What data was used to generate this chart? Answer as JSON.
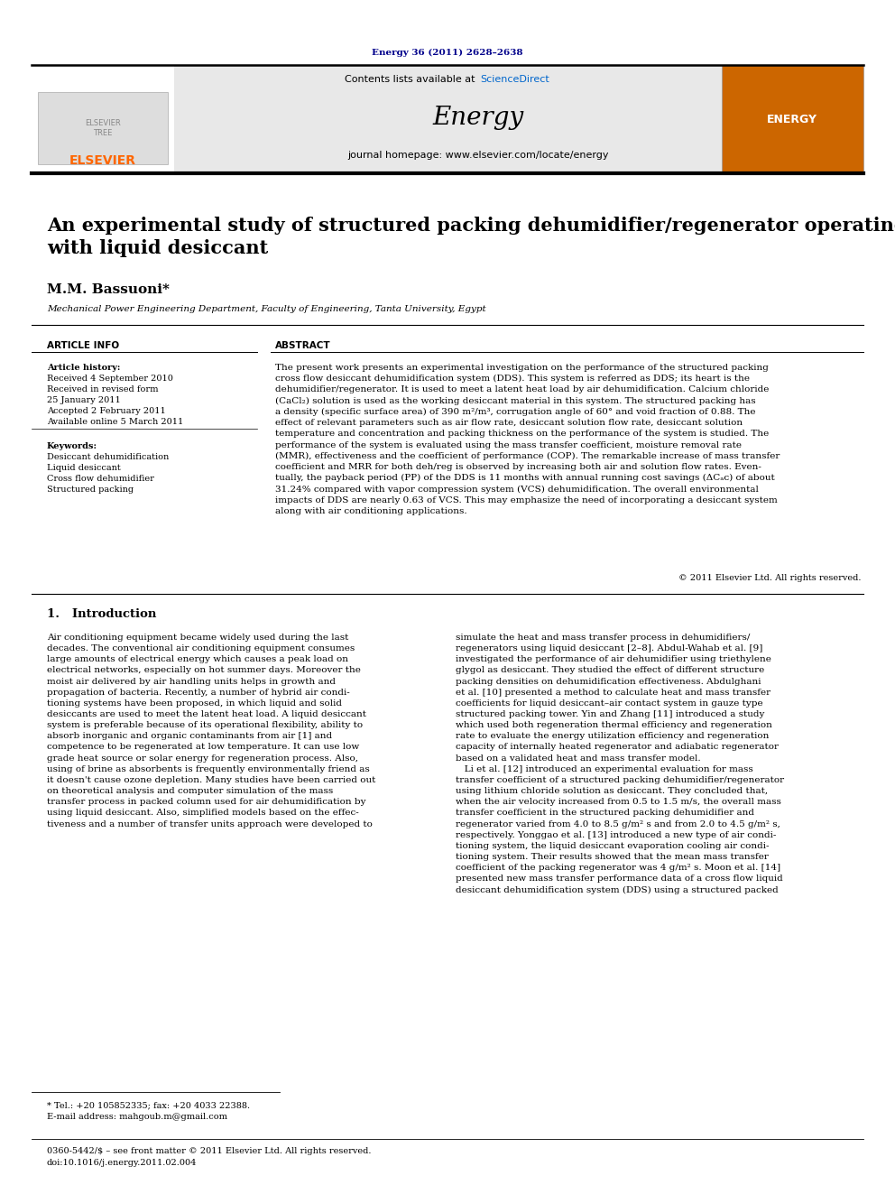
{
  "page_bg": "#ffffff",
  "header_doi": "Energy 36 (2011) 2628–2638",
  "header_doi_color": "#00008B",
  "journal_name": "Energy",
  "contents_text": "Contents lists available at ",
  "sciencedirect_text": "ScienceDirect",
  "sciencedirect_color": "#0066CC",
  "journal_homepage": "journal homepage: www.elsevier.com/locate/energy",
  "elsevier_color": "#FF6600",
  "header_bg": "#E8E8E8",
  "title": "An experimental study of structured packing dehumidifier/regenerator operating\nwith liquid desiccant",
  "author": "M.M. Bassuoni",
  "author_note": "*",
  "affiliation": "Mechanical Power Engineering Department, Faculty of Engineering, Tanta University, Egypt",
  "article_info_header": "ARTICLE INFO",
  "abstract_header": "ABSTRACT",
  "article_history_label": "Article history:",
  "received1": "Received 4 September 2010",
  "received2": "Received in revised form",
  "received2b": "25 January 2011",
  "accepted": "Accepted 2 February 2011",
  "available": "Available online 5 March 2011",
  "keywords_label": "Keywords:",
  "kw1": "Desiccant dehumidification",
  "kw2": "Liquid desiccant",
  "kw3": "Cross flow dehumidifier",
  "kw4": "Structured packing",
  "abstract_text": "The present work presents an experimental investigation on the performance of the structured packing\ncross flow desiccant dehumidification system (DDS). This system is referred as DDS; its heart is the\ndehumidifier/regenerator. It is used to meet a latent heat load by air dehumidification. Calcium chloride\n(CaCl₂) solution is used as the working desiccant material in this system. The structured packing has\na density (specific surface area) of 390 m²/m³, corrugation angle of 60° and void fraction of 0.88. The\neffect of relevant parameters such as air flow rate, desiccant solution flow rate, desiccant solution\ntemperature and concentration and packing thickness on the performance of the system is studied. The\nperformance of the system is evaluated using the mass transfer coefficient, moisture removal rate\n(MMR), effectiveness and the coefficient of performance (COP). The remarkable increase of mass transfer\ncoefficient and MRR for both deh/reg is observed by increasing both air and solution flow rates. Even-\ntually, the payback period (PP) of the DDS is 11 months with annual running cost savings (ΔCₐᴄ) of about\n31.24% compared with vapor compression system (VCS) dehumidification. The overall environmental\nimpacts of DDS are nearly 0.63 of VCS. This may emphasize the need of incorporating a desiccant system\nalong with air conditioning applications.",
  "copyright": "© 2011 Elsevier Ltd. All rights reserved.",
  "intro_header": "1.   Introduction",
  "intro_col1": "Air conditioning equipment became widely used during the last\ndecades. The conventional air conditioning equipment consumes\nlarge amounts of electrical energy which causes a peak load on\nelectrical networks, especially on hot summer days. Moreover the\nmoist air delivered by air handling units helps in growth and\npropagation of bacteria. Recently, a number of hybrid air condi-\ntioning systems have been proposed, in which liquid and solid\ndesiccants are used to meet the latent heat load. A liquid desiccant\nsystem is preferable because of its operational flexibility, ability to\nabsorb inorganic and organic contaminants from air [1] and\ncompetence to be regenerated at low temperature. It can use low\ngrade heat source or solar energy for regeneration process. Also,\nusing of brine as absorbents is frequently environmentally friend as\nit doesn't cause ozone depletion. Many studies have been carried out\non theoretical analysis and computer simulation of the mass\ntransfer process in packed column used for air dehumidification by\nusing liquid desiccant. Also, simplified models based on the effec-\ntiveness and a number of transfer units approach were developed to",
  "intro_col2": "simulate the heat and mass transfer process in dehumidifiers/\nregenerators using liquid desiccant [2–8]. Abdul-Wahab et al. [9]\ninvestigated the performance of air dehumidifier using triethylene\nglygol as desiccant. They studied the effect of different structure\npacking densities on dehumidification effectiveness. Abdulghani\net al. [10] presented a method to calculate heat and mass transfer\ncoefficients for liquid desiccant–air contact system in gauze type\nstructured packing tower. Yin and Zhang [11] introduced a study\nwhich used both regeneration thermal efficiency and regeneration\nrate to evaluate the energy utilization efficiency and regeneration\ncapacity of internally heated regenerator and adiabatic regenerator\nbased on a validated heat and mass transfer model.\n   Li et al. [12] introduced an experimental evaluation for mass\ntransfer coefficient of a structured packing dehumidifier/regenerator\nusing lithium chloride solution as desiccant. They concluded that,\nwhen the air velocity increased from 0.5 to 1.5 m/s, the overall mass\ntransfer coefficient in the structured packing dehumidifier and\nregenerator varied from 4.0 to 8.5 g/m² s and from 2.0 to 4.5 g/m² s,\nrespectively. Yonggao et al. [13] introduced a new type of air condi-\ntioning system, the liquid desiccant evaporation cooling air condi-\ntioning system. Their results showed that the mean mass transfer\ncoefficient of the packing regenerator was 4 g/m² s. Moon et al. [14]\npresented new mass transfer performance data of a cross flow liquid\ndesiccant dehumidification system (DDS) using a structured packed",
  "footnote1": "* Tel.: +20 105852335; fax: +20 4033 22388.",
  "footnote2": "E-mail address: mahgoub.m@gmail.com",
  "footnote3": "0360-5442/$ – see front matter © 2011 Elsevier Ltd. All rights reserved.",
  "footnote4": "doi:10.1016/j.energy.2011.02.004"
}
